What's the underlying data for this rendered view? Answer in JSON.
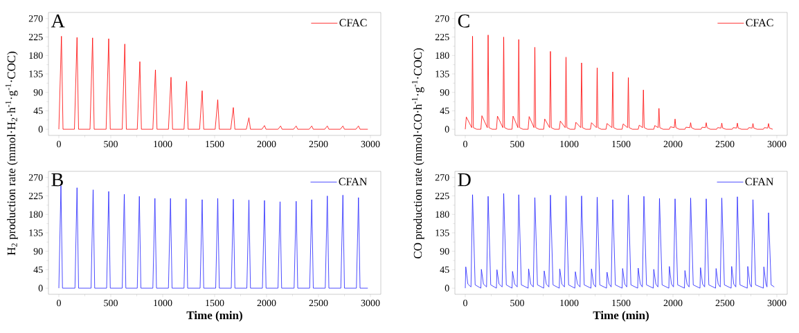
{
  "chart_data": [
    {
      "type": "line",
      "ylabel": "H$_{2}$ production rate (mmol·H$_{2}$·h$^{-1}$·g$^{-1}$·COC)",
      "annotations": [
        "A"
      ],
      "legend": "top right",
      "xlim": [
        -100,
        3100
      ],
      "xticks": [
        0,
        500,
        1000,
        1500,
        2000,
        2500,
        3000
      ],
      "ylim": [
        -15,
        285
      ],
      "yticks": [
        0,
        45,
        90,
        135,
        180,
        225,
        270
      ],
      "series": [
        {
          "name": "CFAC",
          "color": "#ff0000",
          "x": [
            0,
            25,
            40,
            150,
            175,
            190,
            300,
            325,
            340,
            455,
            480,
            495,
            610,
            635,
            650,
            755,
            780,
            795,
            905,
            930,
            945,
            1055,
            1080,
            1095,
            1205,
            1230,
            1245,
            1355,
            1380,
            1395,
            1505,
            1530,
            1545,
            1655,
            1680,
            1695,
            1805,
            1830,
            1845,
            1955,
            1980,
            1995,
            2110,
            2135,
            2150,
            2260,
            2285,
            2300,
            2410,
            2435,
            2450,
            2560,
            2585,
            2600,
            2710,
            2735,
            2750,
            2860,
            2885,
            2900,
            2975
          ],
          "values": [
            0,
            227,
            0,
            0,
            224,
            0,
            0,
            223,
            0,
            0,
            221,
            0,
            0,
            208,
            0,
            0,
            165,
            0,
            0,
            145,
            0,
            0,
            127,
            0,
            0,
            117,
            0,
            0,
            94,
            0,
            0,
            72,
            0,
            0,
            53,
            0,
            0,
            28,
            0,
            0,
            9,
            0,
            0,
            8,
            0,
            0,
            8,
            0,
            0,
            8,
            0,
            0,
            8,
            0,
            0,
            8,
            0,
            0,
            8,
            0,
            0
          ]
        }
      ]
    },
    {
      "type": "line",
      "xlabel": "Time (min)",
      "annotations": [
        "B"
      ],
      "legend": "top right",
      "xlim": [
        -100,
        3100
      ],
      "xticks": [
        0,
        500,
        1000,
        1500,
        2000,
        2500,
        3000
      ],
      "ylim": [
        -15,
        285
      ],
      "yticks": [
        0,
        45,
        90,
        135,
        180,
        225,
        270
      ],
      "series": [
        {
          "name": "CFAN",
          "color": "#1f1fff",
          "x": [
            0,
            20,
            35,
            155,
            175,
            190,
            310,
            330,
            345,
            460,
            480,
            495,
            610,
            630,
            645,
            755,
            775,
            790,
            905,
            925,
            940,
            1055,
            1075,
            1090,
            1205,
            1225,
            1240,
            1360,
            1380,
            1395,
            1510,
            1530,
            1545,
            1660,
            1680,
            1695,
            1810,
            1830,
            1845,
            1960,
            1980,
            1995,
            2110,
            2130,
            2145,
            2265,
            2285,
            2300,
            2415,
            2435,
            2450,
            2565,
            2585,
            2600,
            2715,
            2735,
            2750,
            2865,
            2885,
            2900,
            2975
          ],
          "values": [
            0,
            250,
            0,
            0,
            245,
            0,
            0,
            240,
            0,
            0,
            236,
            0,
            0,
            229,
            0,
            0,
            224,
            0,
            0,
            219,
            0,
            0,
            219,
            0,
            0,
            218,
            0,
            0,
            216,
            0,
            0,
            219,
            0,
            0,
            217,
            0,
            0,
            215,
            0,
            0,
            214,
            0,
            0,
            211,
            0,
            0,
            212,
            0,
            0,
            216,
            0,
            0,
            225,
            0,
            0,
            227,
            0,
            0,
            221,
            0,
            0
          ]
        }
      ]
    },
    {
      "type": "line",
      "ylabel": "CO production rate (mmol·CO·h$^{-1}$·g$^{-1}$·COC)",
      "annotations": [
        "C"
      ],
      "legend": "top right",
      "xlim": [
        -100,
        3100
      ],
      "xticks": [
        0,
        500,
        1000,
        1500,
        2000,
        2500,
        3000
      ],
      "ylim": [
        -15,
        285
      ],
      "yticks": [
        0,
        45,
        90,
        135,
        180,
        225,
        270
      ],
      "series": [
        {
          "name": "CFAC",
          "color": "#ff0000",
          "x": [
            0,
            10,
            62,
            70,
            78,
            110,
            150,
            160,
            212,
            220,
            228,
            260,
            300,
            310,
            362,
            370,
            378,
            410,
            450,
            460,
            507,
            515,
            523,
            555,
            605,
            615,
            662,
            670,
            678,
            710,
            755,
            765,
            812,
            820,
            828,
            860,
            905,
            915,
            962,
            970,
            978,
            1010,
            1055,
            1065,
            1112,
            1120,
            1128,
            1160,
            1205,
            1215,
            1262,
            1270,
            1278,
            1310,
            1355,
            1365,
            1412,
            1420,
            1428,
            1460,
            1510,
            1520,
            1562,
            1570,
            1578,
            1610,
            1665,
            1675,
            1707,
            1715,
            1723,
            1755,
            1815,
            1825,
            1857,
            1865,
            1873,
            1905,
            1965,
            1975,
            2012,
            2020,
            2028,
            2060,
            2115,
            2125,
            2162,
            2170,
            2178,
            2210,
            2270,
            2280,
            2312,
            2320,
            2328,
            2360,
            2420,
            2430,
            2462,
            2470,
            2478,
            2510,
            2570,
            2580,
            2612,
            2620,
            2628,
            2660,
            2720,
            2730,
            2762,
            2770,
            2778,
            2810,
            2870,
            2880,
            2912,
            2920,
            2928,
            2960
          ],
          "values": [
            0,
            30,
            4,
            227,
            4,
            0,
            0,
            33,
            4,
            230,
            4,
            0,
            0,
            32,
            4,
            225,
            4,
            0,
            0,
            32,
            4,
            219,
            4,
            0,
            0,
            31,
            4,
            200,
            4,
            0,
            0,
            25,
            4,
            190,
            4,
            0,
            0,
            20,
            4,
            176,
            4,
            0,
            0,
            17,
            4,
            162,
            4,
            0,
            0,
            16,
            4,
            150,
            4,
            0,
            0,
            14,
            4,
            140,
            4,
            0,
            0,
            13,
            4,
            126,
            4,
            0,
            0,
            10,
            4,
            96,
            4,
            0,
            0,
            9,
            4,
            51,
            4,
            0,
            0,
            6,
            4,
            25,
            4,
            0,
            0,
            5,
            4,
            16,
            4,
            0,
            0,
            5,
            4,
            16,
            4,
            0,
            0,
            4,
            3,
            15,
            3,
            0,
            0,
            4,
            3,
            15,
            3,
            0,
            0,
            4,
            3,
            14,
            3,
            0,
            0,
            4,
            3,
            14,
            3,
            0
          ]
        }
      ]
    },
    {
      "type": "line",
      "xlabel": "Time (min)",
      "annotations": [
        "D"
      ],
      "legend": "top right",
      "xlim": [
        -100,
        3100
      ],
      "xticks": [
        0,
        500,
        1000,
        1500,
        2000,
        2500,
        3000
      ],
      "ylim": [
        -15,
        285
      ],
      "yticks": [
        0,
        45,
        90,
        135,
        180,
        225,
        270
      ],
      "series": [
        {
          "name": "CFAN",
          "color": "#1f1fff",
          "x": [
            0,
            5,
            25,
            55,
            70,
            95,
            150,
            155,
            175,
            205,
            220,
            245,
            300,
            305,
            325,
            355,
            370,
            395,
            450,
            455,
            475,
            500,
            515,
            540,
            605,
            610,
            630,
            655,
            670,
            695,
            755,
            760,
            780,
            805,
            820,
            845,
            905,
            910,
            930,
            955,
            970,
            995,
            1055,
            1060,
            1080,
            1105,
            1120,
            1145,
            1210,
            1215,
            1235,
            1255,
            1270,
            1295,
            1360,
            1365,
            1385,
            1405,
            1420,
            1445,
            1510,
            1515,
            1535,
            1555,
            1570,
            1595,
            1660,
            1665,
            1685,
            1705,
            1720,
            1745,
            1810,
            1815,
            1835,
            1855,
            1870,
            1895,
            1960,
            1965,
            1985,
            2005,
            2020,
            2045,
            2110,
            2115,
            2135,
            2155,
            2170,
            2195,
            2260,
            2265,
            2285,
            2305,
            2320,
            2345,
            2410,
            2415,
            2435,
            2455,
            2470,
            2495,
            2560,
            2565,
            2585,
            2605,
            2620,
            2645,
            2715,
            2720,
            2740,
            2755,
            2770,
            2795,
            2870,
            2875,
            2895,
            2905,
            2920,
            2945,
            2975
          ],
          "values": [
            0,
            52,
            10,
            3,
            228,
            8,
            0,
            46,
            10,
            3,
            224,
            8,
            0,
            45,
            10,
            3,
            231,
            8,
            0,
            41,
            10,
            3,
            228,
            8,
            0,
            47,
            10,
            3,
            221,
            8,
            0,
            42,
            10,
            3,
            227,
            8,
            0,
            47,
            10,
            3,
            225,
            8,
            0,
            40,
            10,
            3,
            225,
            8,
            0,
            47,
            10,
            3,
            222,
            8,
            0,
            39,
            10,
            3,
            216,
            8,
            0,
            48,
            10,
            3,
            227,
            8,
            0,
            49,
            10,
            3,
            224,
            8,
            0,
            46,
            10,
            3,
            219,
            8,
            0,
            53,
            10,
            3,
            218,
            8,
            0,
            43,
            10,
            3,
            220,
            8,
            0,
            50,
            10,
            3,
            218,
            8,
            0,
            48,
            10,
            3,
            220,
            8,
            0,
            53,
            10,
            3,
            223,
            8,
            0,
            53,
            10,
            3,
            216,
            8,
            0,
            52,
            10,
            3,
            184,
            8,
            3
          ]
        }
      ]
    }
  ]
}
